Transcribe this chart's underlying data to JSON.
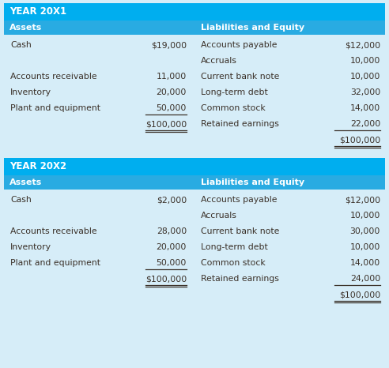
{
  "bg_color": "#d6edf8",
  "header_bar_color": "#00aeef",
  "subheader_color": "#29abe2",
  "header_text_color": "#ffffff",
  "body_text_color": "#3a3028",
  "title_font_size": 8.5,
  "header_font_size": 8.0,
  "body_font_size": 7.8,
  "fig_w": 4.92,
  "fig_h": 4.66,
  "dpi": 100,
  "tables": [
    {
      "year": "YEAR 20X1",
      "assets": [
        {
          "label": "Cash",
          "value": "$19,000",
          "underline": false,
          "total": false
        },
        {
          "label": "",
          "value": "",
          "underline": false,
          "total": false
        },
        {
          "label": "Accounts receivable",
          "value": "11,000",
          "underline": false,
          "total": false
        },
        {
          "label": "Inventory",
          "value": "20,000",
          "underline": false,
          "total": false
        },
        {
          "label": "Plant and equipment",
          "value": "50,000",
          "underline": true,
          "total": false
        },
        {
          "label": "",
          "value": "$100,000",
          "underline": true,
          "total": true
        }
      ],
      "liabilities": [
        {
          "label": "Accounts payable",
          "value": "$12,000",
          "underline": false,
          "total": false
        },
        {
          "label": "Accruals",
          "value": "10,000",
          "underline": false,
          "total": false
        },
        {
          "label": "Current bank note",
          "value": "10,000",
          "underline": false,
          "total": false
        },
        {
          "label": "Long-term debt",
          "value": "32,000",
          "underline": false,
          "total": false
        },
        {
          "label": "Common stock",
          "value": "14,000",
          "underline": false,
          "total": false
        },
        {
          "label": "Retained earnings",
          "value": "22,000",
          "underline": true,
          "total": false
        },
        {
          "label": "",
          "value": "$100,000",
          "underline": true,
          "total": true
        }
      ]
    },
    {
      "year": "YEAR 20X2",
      "assets": [
        {
          "label": "Cash",
          "value": "$2,000",
          "underline": false,
          "total": false
        },
        {
          "label": "",
          "value": "",
          "underline": false,
          "total": false
        },
        {
          "label": "Accounts receivable",
          "value": "28,000",
          "underline": false,
          "total": false
        },
        {
          "label": "Inventory",
          "value": "20,000",
          "underline": false,
          "total": false
        },
        {
          "label": "Plant and equipment",
          "value": "50,000",
          "underline": true,
          "total": false
        },
        {
          "label": "",
          "value": "$100,000",
          "underline": true,
          "total": true
        }
      ],
      "liabilities": [
        {
          "label": "Accounts payable",
          "value": "$12,000",
          "underline": false,
          "total": false
        },
        {
          "label": "Accruals",
          "value": "10,000",
          "underline": false,
          "total": false
        },
        {
          "label": "Current bank note",
          "value": "30,000",
          "underline": false,
          "total": false
        },
        {
          "label": "Long-term debt",
          "value": "10,000",
          "underline": false,
          "total": false
        },
        {
          "label": "Common stock",
          "value": "14,000",
          "underline": false,
          "total": false
        },
        {
          "label": "Retained earnings",
          "value": "24,000",
          "underline": true,
          "total": false
        },
        {
          "label": "",
          "value": "$100,000",
          "underline": true,
          "total": true
        }
      ]
    }
  ]
}
